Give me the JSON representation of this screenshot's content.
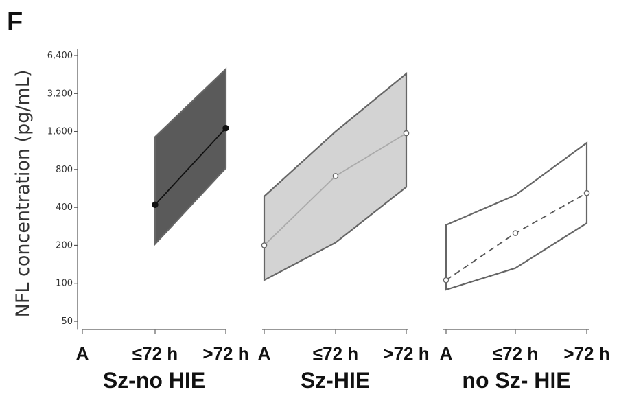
{
  "panel_letter": "F",
  "chart_data": {
    "type": "line",
    "ylabel": "NFL concentration (pg/mL)",
    "yscale": "log2",
    "ylim": [
      45,
      7000
    ],
    "yticks": [
      50,
      100,
      200,
      400,
      800,
      1600,
      3200,
      6400
    ],
    "ytick_labels": [
      "50",
      "100",
      "200",
      "400",
      "800",
      "1,600",
      "3,200",
      "6,400"
    ],
    "grid": false,
    "legend": "none",
    "panels": [
      {
        "group": "Sz-no HIE",
        "categories": [
          "≤72 h",
          ">72 h"
        ],
        "x_labels": [
          "A",
          "≤72 h",
          ">72 h"
        ],
        "median": [
          420,
          1700
        ],
        "upper": [
          1450,
          5000
        ],
        "lower": [
          205,
          820
        ],
        "band_fill": "#5a5a5a",
        "line_color": "#111111",
        "marker": "filled",
        "line_style": "solid"
      },
      {
        "group": "Sz-HIE",
        "categories": [
          "A",
          "≤72 h",
          ">72 h"
        ],
        "x_labels": [
          "A",
          "≤72 h",
          ">72 h"
        ],
        "median": [
          200,
          710,
          1550
        ],
        "upper": [
          490,
          1600,
          4600
        ],
        "lower": [
          106,
          210,
          580
        ],
        "band_fill": "#d3d3d3",
        "line_color": "#aaaaaa",
        "marker": "open",
        "line_style": "solid"
      },
      {
        "group": "no Sz- HIE",
        "categories": [
          "A",
          "≤72 h",
          ">72 h"
        ],
        "x_labels": [
          "A",
          "≤72 h",
          ">72 h"
        ],
        "median": [
          106,
          250,
          520
        ],
        "upper": [
          290,
          500,
          1300
        ],
        "lower": [
          89,
          132,
          300
        ],
        "band_fill": "none",
        "line_color": "#555555",
        "marker": "open",
        "line_style": "dashed"
      }
    ]
  }
}
